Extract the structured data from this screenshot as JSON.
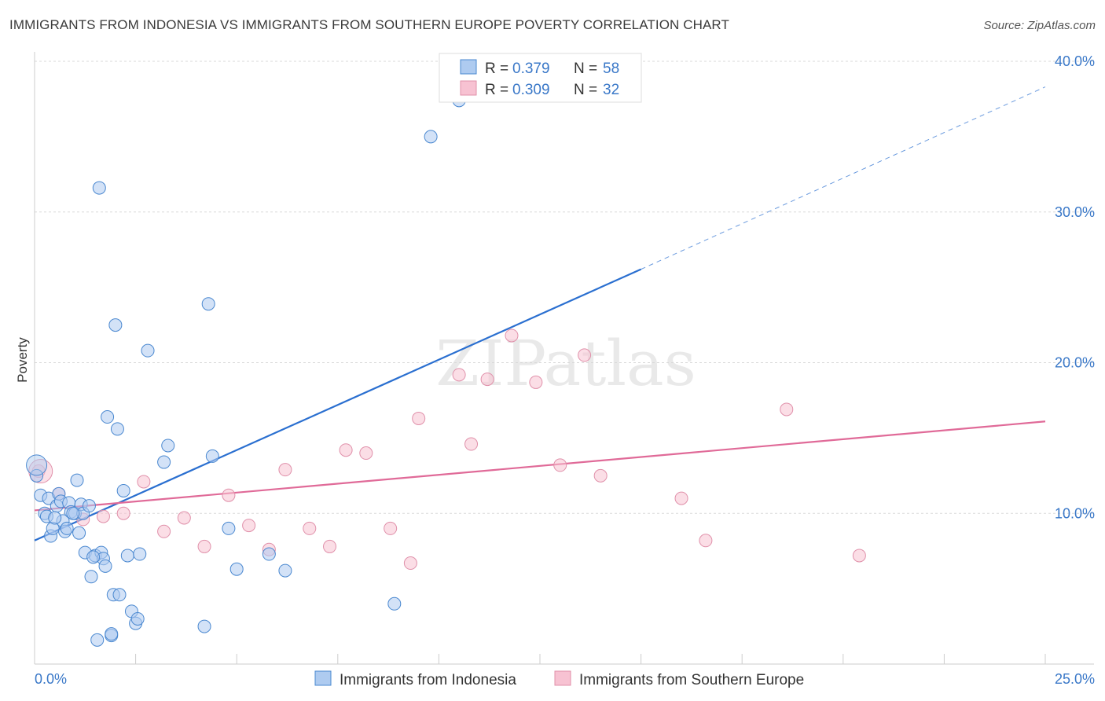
{
  "title": "IMMIGRANTS FROM INDONESIA VS IMMIGRANTS FROM SOUTHERN EUROPE POVERTY CORRELATION CHART",
  "source": "Source: ZipAtlas.com",
  "watermark": "ZIPatlas",
  "colors": {
    "blue_fill": "#aecbf0",
    "blue_stroke": "#4a88d0",
    "blue_line": "#2a6fd0",
    "pink_fill": "#f7c2d2",
    "pink_stroke": "#e090aa",
    "pink_line": "#e06a98",
    "grid": "#d8d8d8"
  },
  "stats_box": {
    "series": [
      {
        "r_label": "R =",
        "r_value": "0.379",
        "n_label": "N =",
        "n_value": "58"
      },
      {
        "r_label": "R =",
        "r_value": "0.309",
        "n_label": "N =",
        "n_value": "32"
      }
    ]
  },
  "chart_data": {
    "type": "scatter",
    "xlabel": "",
    "ylabel": "Poverty",
    "xlim": [
      0,
      25
    ],
    "ylim": [
      0,
      40
    ],
    "x_tick_labels": [
      "0.0%",
      "25.0%"
    ],
    "y_tick_labels": [
      "10.0%",
      "20.0%",
      "30.0%",
      "40.0%"
    ],
    "y_tick_values": [
      10,
      20,
      30,
      40
    ],
    "grid": true,
    "legend": "bottom-center",
    "series": [
      {
        "name": "Immigrants from Indonesia",
        "color": "blue",
        "trend": {
          "x0": 0,
          "y0": 8.2,
          "x1": 15,
          "y1": 26.2,
          "dashed_to_x": 25,
          "dashed_to_y": 38.3
        },
        "points": [
          [
            0.05,
            12.5
          ],
          [
            0.15,
            11.2
          ],
          [
            0.25,
            10.0
          ],
          [
            0.3,
            9.8
          ],
          [
            0.35,
            11.0
          ],
          [
            0.4,
            8.5
          ],
          [
            0.45,
            9.0
          ],
          [
            0.55,
            10.5
          ],
          [
            0.6,
            11.3
          ],
          [
            0.65,
            10.8
          ],
          [
            0.7,
            9.5
          ],
          [
            0.75,
            8.8
          ],
          [
            0.8,
            9.0
          ],
          [
            0.85,
            10.7
          ],
          [
            0.9,
            10.1
          ],
          [
            1.0,
            10.0
          ],
          [
            1.05,
            12.2
          ],
          [
            1.1,
            8.7
          ],
          [
            1.15,
            10.6
          ],
          [
            1.2,
            10.0
          ],
          [
            1.25,
            7.4
          ],
          [
            1.35,
            10.5
          ],
          [
            1.4,
            5.8
          ],
          [
            1.5,
            7.2
          ],
          [
            1.55,
            1.6
          ],
          [
            1.6,
            31.6
          ],
          [
            1.65,
            7.4
          ],
          [
            1.7,
            7.0
          ],
          [
            1.75,
            6.5
          ],
          [
            1.8,
            16.4
          ],
          [
            1.9,
            1.9
          ],
          [
            1.95,
            4.6
          ],
          [
            2.0,
            22.5
          ],
          [
            2.05,
            15.6
          ],
          [
            2.1,
            4.6
          ],
          [
            2.2,
            11.5
          ],
          [
            2.3,
            7.2
          ],
          [
            2.4,
            3.5
          ],
          [
            2.5,
            2.7
          ],
          [
            2.55,
            3.0
          ],
          [
            2.6,
            7.3
          ],
          [
            2.8,
            20.8
          ],
          [
            3.2,
            13.4
          ],
          [
            3.3,
            14.5
          ],
          [
            4.2,
            2.5
          ],
          [
            4.3,
            23.9
          ],
          [
            4.4,
            13.8
          ],
          [
            4.8,
            9.0
          ],
          [
            5.0,
            6.3
          ],
          [
            5.8,
            7.3
          ],
          [
            6.2,
            6.2
          ],
          [
            8.9,
            4.0
          ],
          [
            9.8,
            35.0
          ],
          [
            10.5,
            37.4
          ],
          [
            1.9,
            2.0
          ],
          [
            1.45,
            7.1
          ],
          [
            0.95,
            10.0
          ],
          [
            0.5,
            9.7
          ]
        ]
      },
      {
        "name": "Immigrants from Southern Europe",
        "color": "pink",
        "trend": {
          "x0": 0,
          "y0": 10.2,
          "x1": 25,
          "y1": 16.1
        },
        "points": [
          [
            0.1,
            12.8
          ],
          [
            0.6,
            11.3
          ],
          [
            1.2,
            9.6
          ],
          [
            1.7,
            9.8
          ],
          [
            2.2,
            10.0
          ],
          [
            2.7,
            12.1
          ],
          [
            3.2,
            8.8
          ],
          [
            3.7,
            9.7
          ],
          [
            4.2,
            7.8
          ],
          [
            4.8,
            11.2
          ],
          [
            5.3,
            9.2
          ],
          [
            5.8,
            7.6
          ],
          [
            6.2,
            12.9
          ],
          [
            6.8,
            9.0
          ],
          [
            7.3,
            7.8
          ],
          [
            7.7,
            14.2
          ],
          [
            8.2,
            14.0
          ],
          [
            8.8,
            9.0
          ],
          [
            9.3,
            6.7
          ],
          [
            9.5,
            16.3
          ],
          [
            10.5,
            19.2
          ],
          [
            10.8,
            14.6
          ],
          [
            11.2,
            18.9
          ],
          [
            11.8,
            21.8
          ],
          [
            12.4,
            18.7
          ],
          [
            13.0,
            13.2
          ],
          [
            13.6,
            20.5
          ],
          [
            14.0,
            12.5
          ],
          [
            16.0,
            11.0
          ],
          [
            16.6,
            8.2
          ],
          [
            18.6,
            16.9
          ],
          [
            20.4,
            7.2
          ]
        ]
      }
    ]
  }
}
